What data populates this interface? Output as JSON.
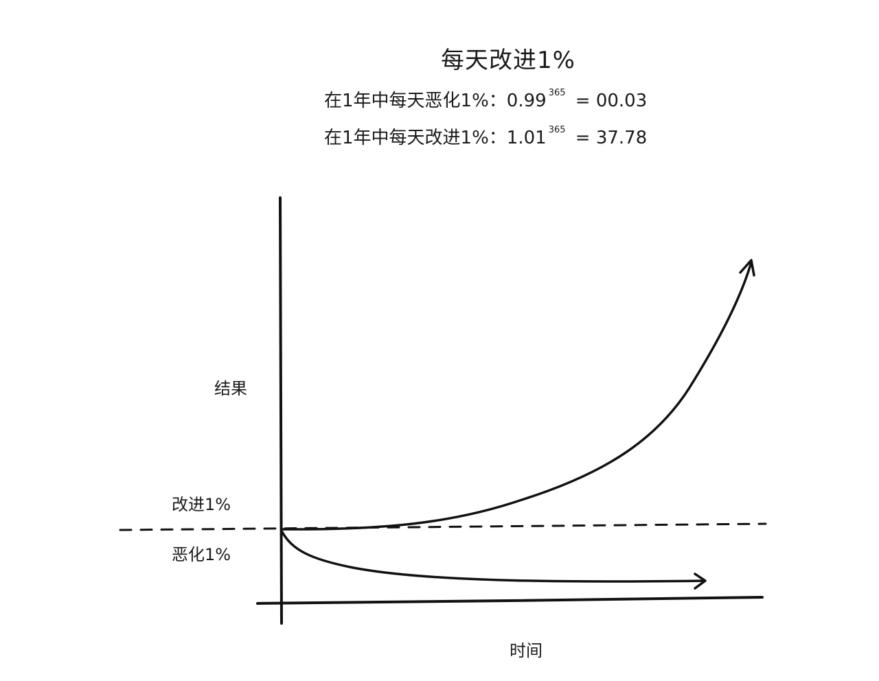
{
  "title": "每天改进1%",
  "formulas": {
    "worsen": {
      "label": "在1年中每天恶化1%：",
      "base": "0.99",
      "exponent": "365",
      "result": " = 00.03"
    },
    "improve": {
      "label": "在1年中每天改进1%：",
      "base": "1.01",
      "exponent": "365",
      "result": " = 37.78"
    }
  },
  "axes": {
    "y_label": "结果",
    "x_label": "时间"
  },
  "curves": {
    "improve_label": "改进1%",
    "worsen_label": "恶化1%"
  },
  "colors": {
    "ink": "#111111"
  }
}
